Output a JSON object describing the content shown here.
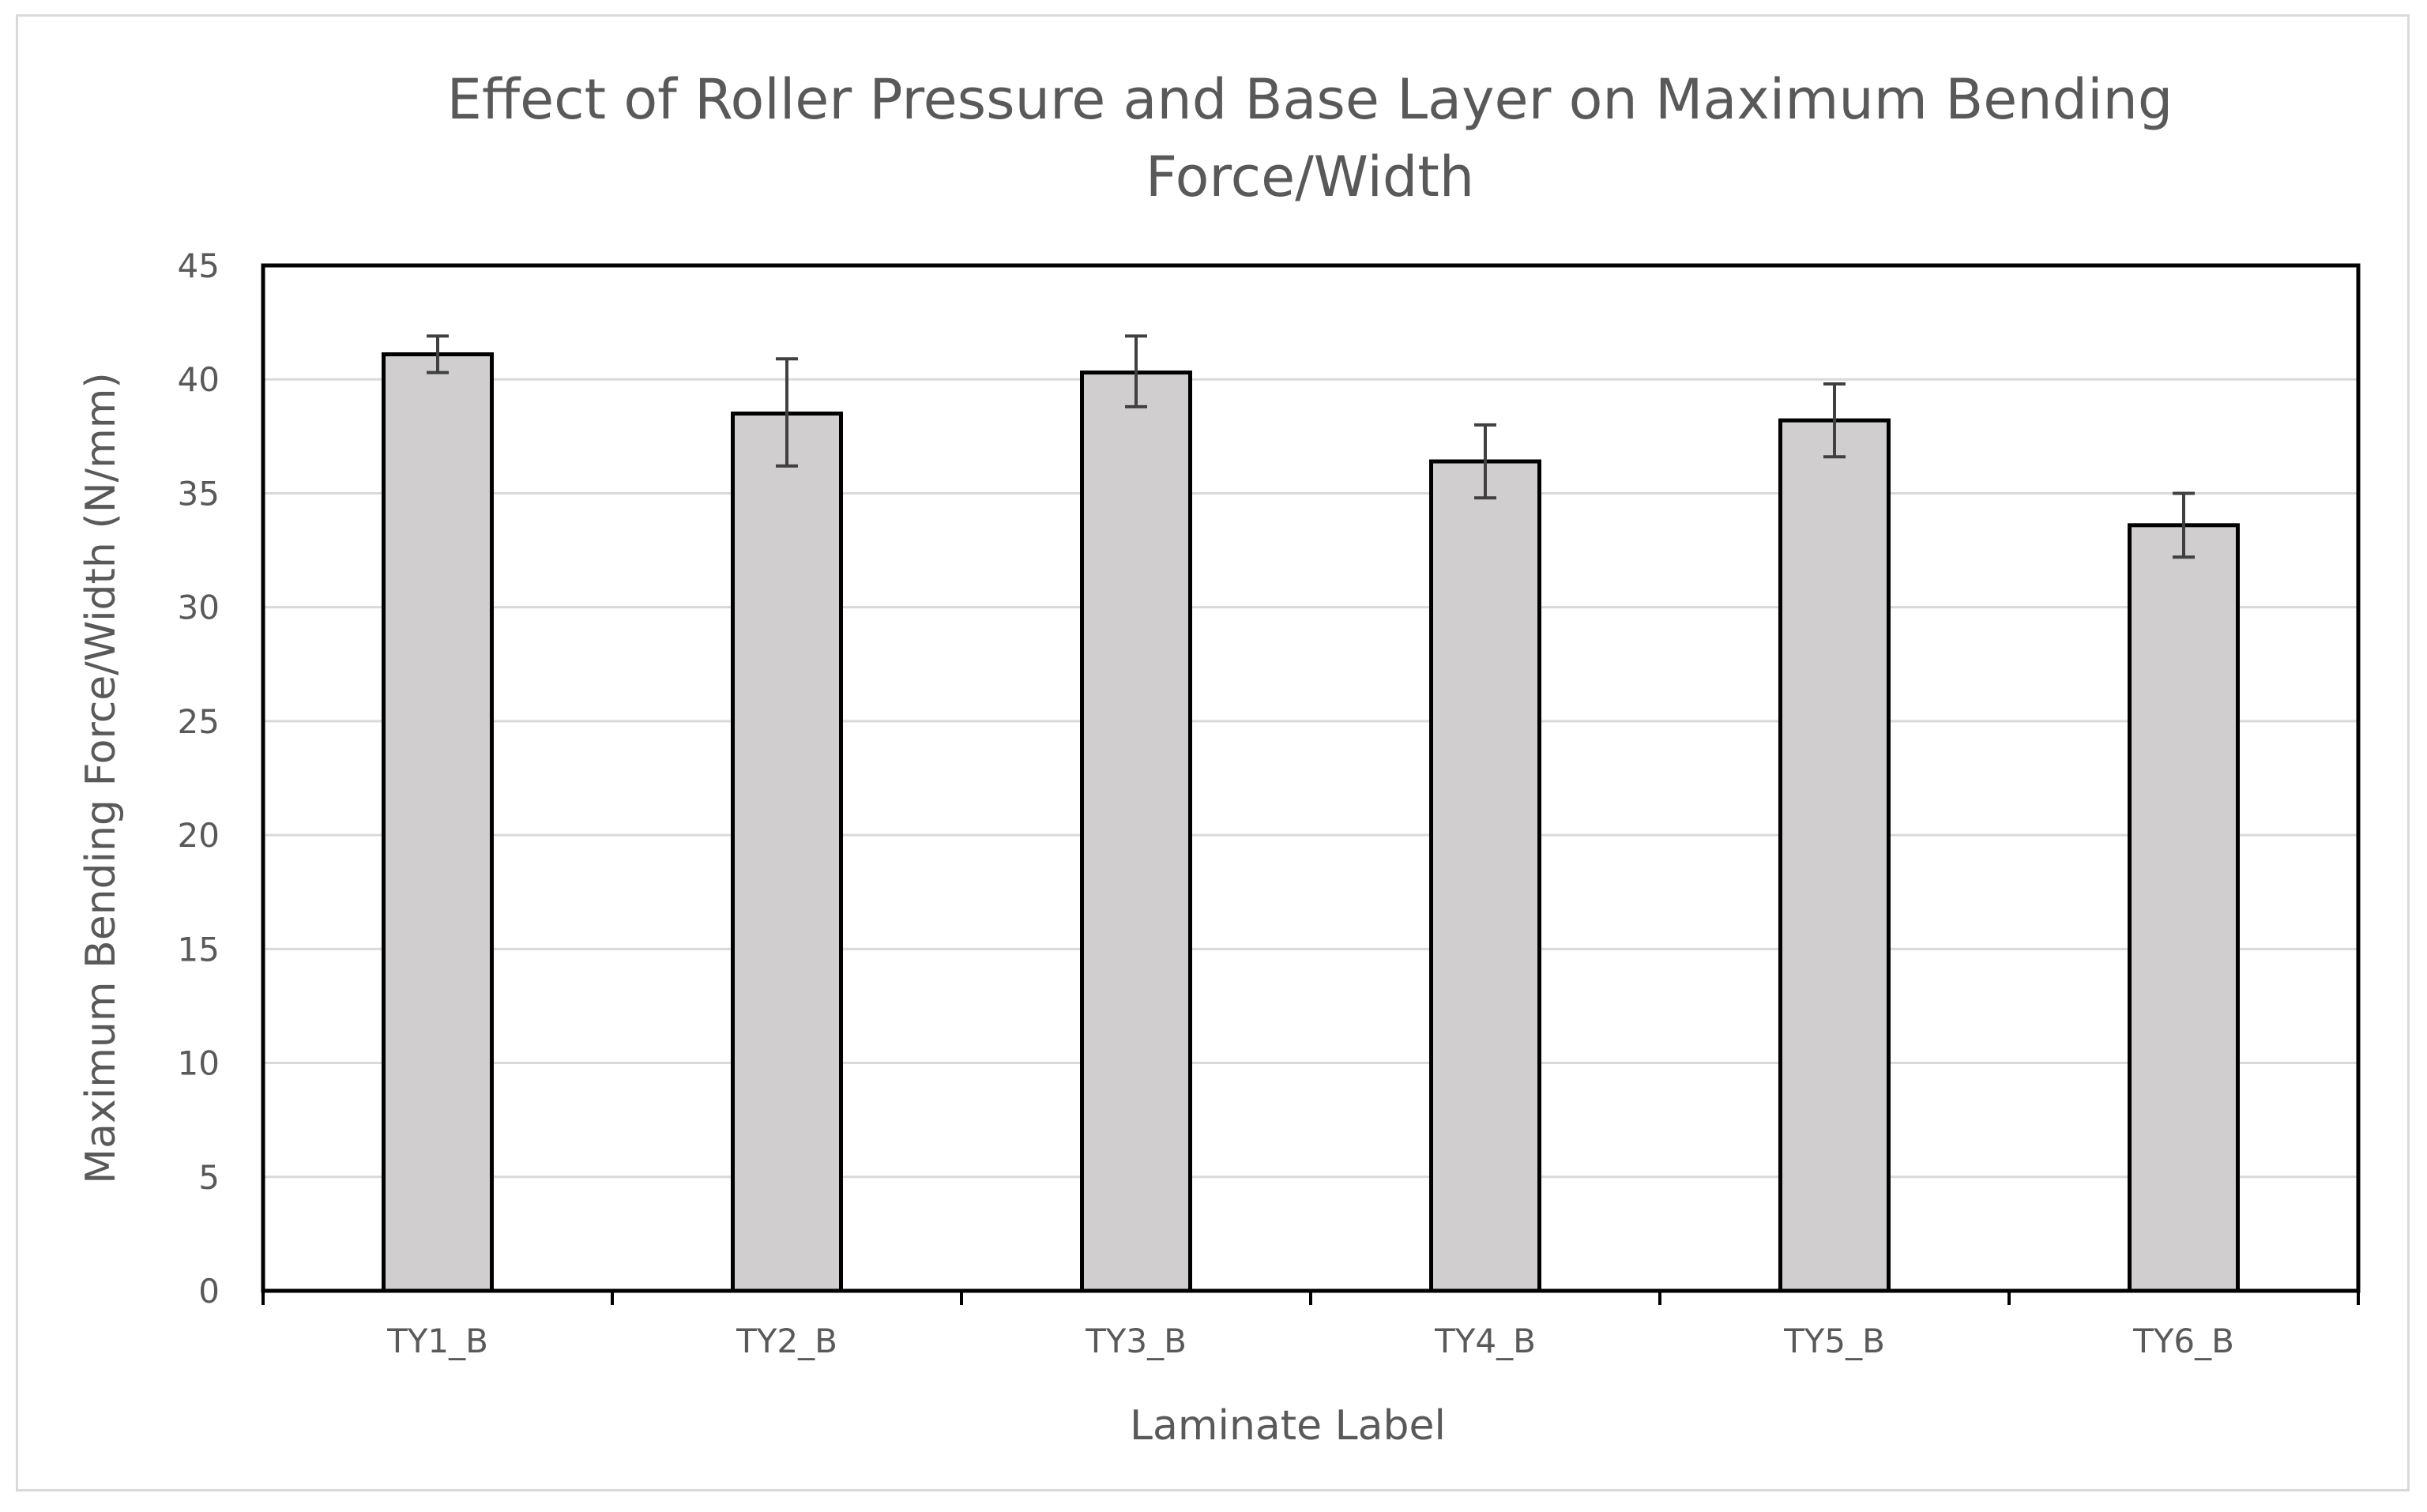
{
  "chart_data": {
    "type": "bar",
    "title": [
      "Effect of Roller Pressure and Base Layer on Maximum Bending",
      "Force/Width"
    ],
    "xlabel": "Laminate Label",
    "ylabel": "Maximum Bending Force/Width (N/mm)",
    "categories": [
      "TY1_B",
      "TY2_B",
      "TY3_B",
      "TY4_B",
      "TY5_B",
      "TY6_B"
    ],
    "values": [
      41.1,
      38.5,
      40.3,
      36.4,
      38.2,
      33.6
    ],
    "error_low": [
      40.3,
      36.2,
      38.8,
      34.8,
      36.6,
      32.2
    ],
    "error_high": [
      41.9,
      40.9,
      41.9,
      38.0,
      39.8,
      35.0
    ],
    "ylim": [
      0,
      45
    ],
    "yticks": [
      0,
      5,
      10,
      15,
      20,
      25,
      30,
      35,
      40,
      45
    ],
    "grid": true,
    "legend": "none",
    "colors": {
      "bar_fill": "#d0cece",
      "bar_stroke": "#000000",
      "gridline": "#d9d9d9",
      "error_bar": "#404040",
      "text": "#595959",
      "frame": "#d9d9d9"
    }
  }
}
